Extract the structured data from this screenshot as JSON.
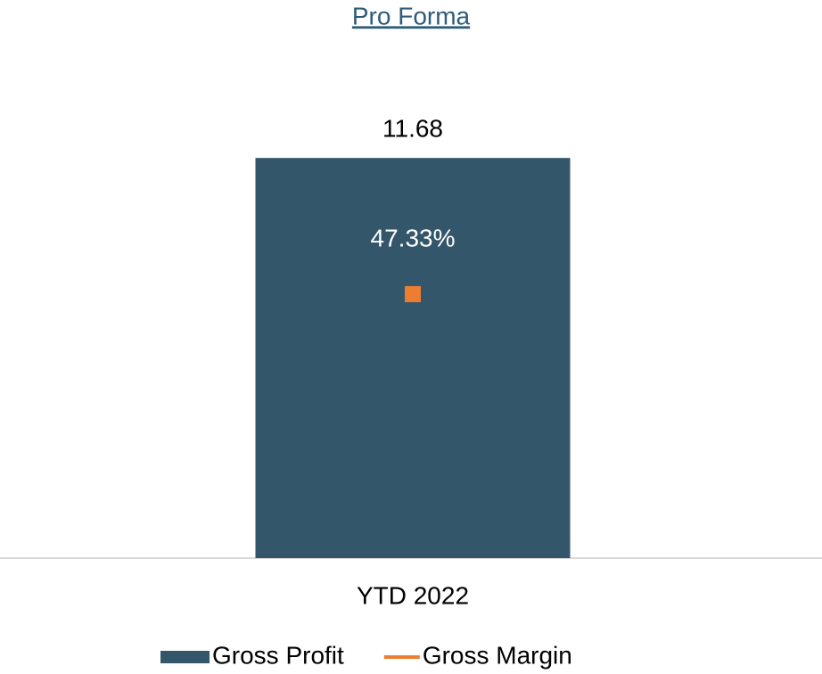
{
  "chart_data": {
    "type": "bar",
    "title": "Pro Forma",
    "categories": [
      "YTD 2022"
    ],
    "ylim": [
      0,
      14
    ],
    "y2lim": [
      0,
      86
    ],
    "series": [
      {
        "name": "Gross Profit",
        "type": "bar",
        "color": "#34566a",
        "values": [
          11.68
        ]
      },
      {
        "name": "Gross Margin",
        "type": "line",
        "axis": "y2",
        "color": "#ed7d31",
        "values": [
          47.33
        ],
        "value_labels": [
          "47.33%"
        ]
      }
    ],
    "legend": "bottom"
  }
}
